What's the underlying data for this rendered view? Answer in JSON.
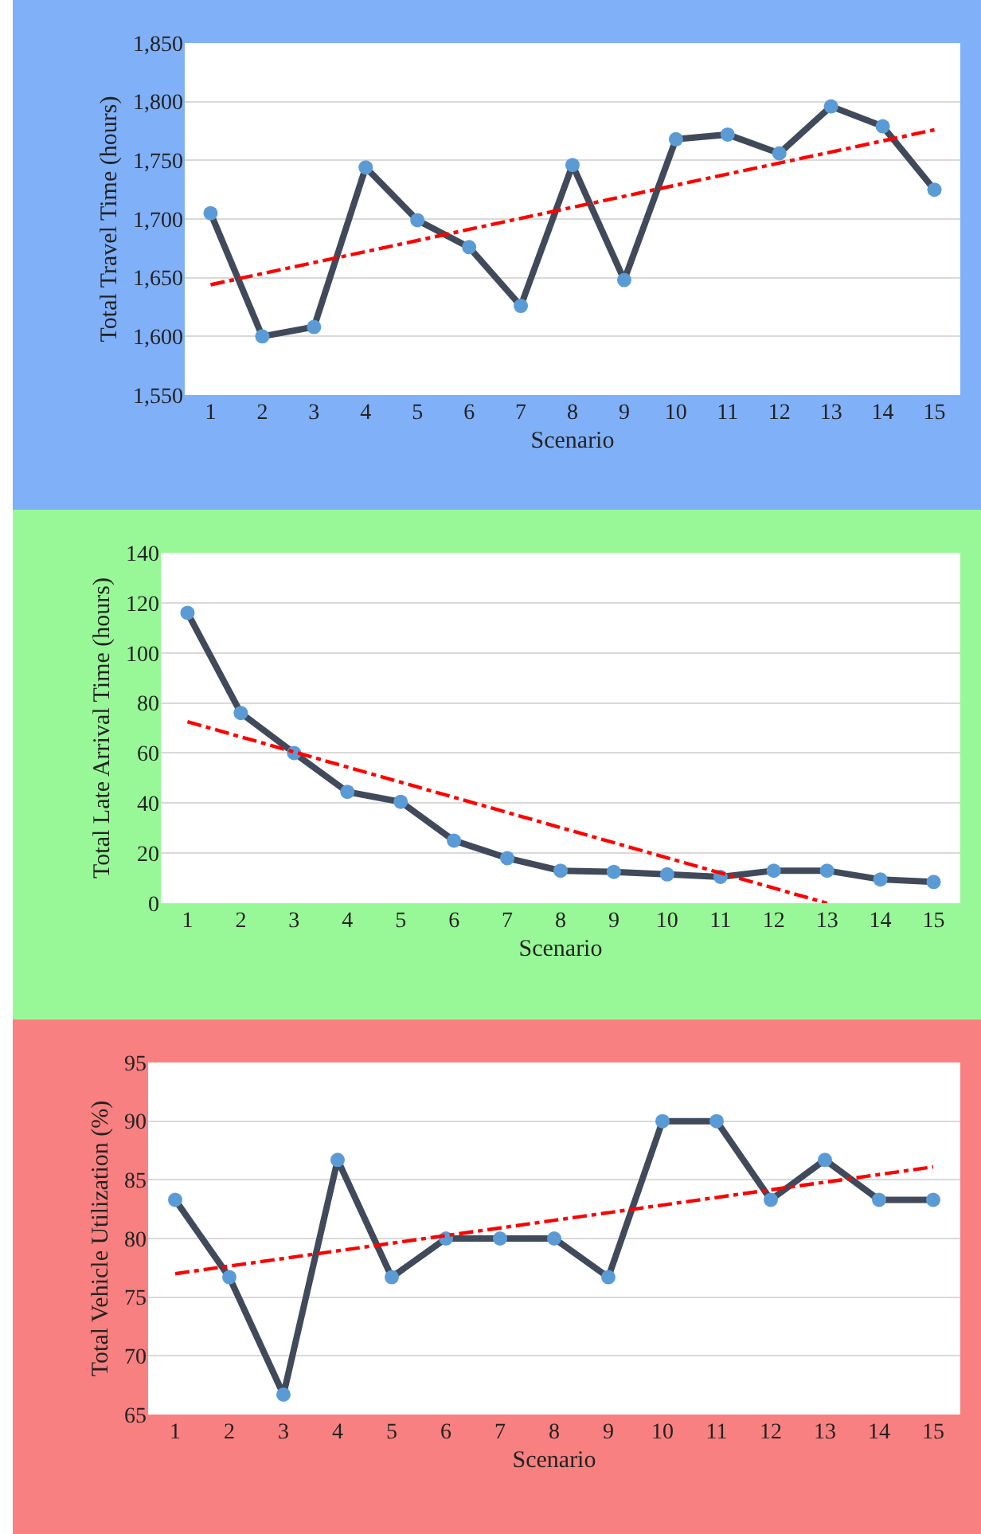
{
  "chart_data": [
    {
      "type": "line",
      "ylabel": "Total Travel Time (hours)",
      "xlabel": "Scenario",
      "x": [
        1,
        2,
        3,
        4,
        5,
        6,
        7,
        8,
        9,
        10,
        11,
        12,
        13,
        14,
        15
      ],
      "xlim": [
        0.5,
        15.5
      ],
      "xticks": [
        1,
        2,
        3,
        4,
        5,
        6,
        7,
        8,
        9,
        10,
        11,
        12,
        13,
        14,
        15
      ],
      "ylim": [
        1550,
        1850
      ],
      "yticks": [
        {
          "value": 1550,
          "label": "1,550"
        },
        {
          "value": 1600,
          "label": "1,600"
        },
        {
          "value": 1650,
          "label": "1,650"
        },
        {
          "value": 1700,
          "label": "1,700"
        },
        {
          "value": 1750,
          "label": "1,750"
        },
        {
          "value": 1800,
          "label": "1,800"
        },
        {
          "value": 1850,
          "label": "1,850"
        }
      ],
      "grid": "y",
      "marker": "circle",
      "series": [
        {
          "color": "#404a5a",
          "values": [
            1705,
            1600,
            1608,
            1744,
            1699,
            1676,
            1626,
            1746,
            1648,
            1768,
            1772,
            1756,
            1796,
            1779,
            1725
          ]
        },
        {
          "type": "line",
          "color": "#ff0000",
          "x": [
            1,
            15
          ],
          "values": [
            1644,
            1776
          ],
          "marker": "none",
          "line_style": "dashed"
        }
      ]
    },
    {
      "type": "line",
      "ylabel": "Total Late Arrival Time (hours)",
      "xlabel": "Scenario",
      "x": [
        1,
        2,
        3,
        4,
        5,
        6,
        7,
        8,
        9,
        10,
        11,
        12,
        13,
        14,
        15
      ],
      "xlim": [
        0.5,
        15.5
      ],
      "xticks": [
        1,
        2,
        3,
        4,
        5,
        6,
        7,
        8,
        9,
        10,
        11,
        12,
        13,
        14,
        15
      ],
      "ylim": [
        0,
        140
      ],
      "yticks": [
        0,
        20,
        40,
        60,
        80,
        100,
        120,
        140
      ],
      "grid": "y",
      "marker": "circle",
      "series": [
        {
          "color": "#404a5a",
          "values": [
            116,
            76,
            60,
            44.5,
            40.5,
            25,
            18,
            13,
            12.5,
            11.5,
            10.5,
            13,
            13,
            9.5,
            8.5
          ]
        },
        {
          "type": "line",
          "color": "#ff0000",
          "x": [
            1,
            13
          ],
          "values": [
            72.5,
            0
          ],
          "marker": "none",
          "line_style": "dashed"
        }
      ]
    },
    {
      "type": "line",
      "ylabel": "Total Vehicle Utilization (%)",
      "xlabel": "Scenario",
      "x": [
        1,
        2,
        3,
        4,
        5,
        6,
        7,
        8,
        9,
        10,
        11,
        12,
        13,
        14,
        15
      ],
      "xlim": [
        0.5,
        15.5
      ],
      "xticks": [
        1,
        2,
        3,
        4,
        5,
        6,
        7,
        8,
        9,
        10,
        11,
        12,
        13,
        14,
        15
      ],
      "ylim": [
        65,
        95
      ],
      "yticks": [
        65,
        70,
        75,
        80,
        85,
        90,
        95
      ],
      "grid": "y",
      "marker": "circle",
      "series": [
        {
          "color": "#404a5a",
          "values": [
            83.3,
            76.7,
            66.7,
            86.7,
            76.7,
            80,
            80,
            80,
            76.7,
            90,
            90,
            83.3,
            86.7,
            83.3,
            83.3
          ]
        },
        {
          "type": "line",
          "color": "#ff0000",
          "x": [
            1,
            15
          ],
          "values": [
            77,
            86.1
          ],
          "marker": "none",
          "line_style": "dashed"
        }
      ]
    }
  ]
}
